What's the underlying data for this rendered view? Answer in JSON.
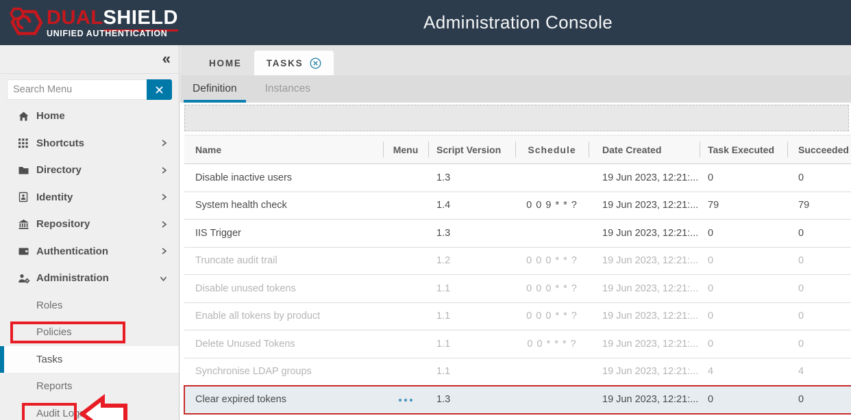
{
  "header": {
    "title": "Administration Console",
    "logo": {
      "brand_red": "DUAL",
      "brand_white": "SHIELD",
      "tagline": "UNIFIED AUTHENTICATION"
    }
  },
  "sidebar": {
    "collapse_icon": "«",
    "search": {
      "placeholder": "Search Menu",
      "value": ""
    },
    "items": [
      {
        "label": "Home",
        "icon": "home-icon",
        "chevron": "none",
        "level": 1
      },
      {
        "label": "Shortcuts",
        "icon": "shortcuts-grid-icon",
        "chevron": "right",
        "level": 1
      },
      {
        "label": "Directory",
        "icon": "folder-icon",
        "chevron": "right",
        "level": 1
      },
      {
        "label": "Identity",
        "icon": "id-card-icon",
        "chevron": "right",
        "level": 1
      },
      {
        "label": "Repository",
        "icon": "bank-icon",
        "chevron": "right",
        "level": 1
      },
      {
        "label": "Authentication",
        "icon": "wallet-icon",
        "chevron": "right",
        "level": 1
      },
      {
        "label": "Administration",
        "icon": "admin-user-gear-icon",
        "chevron": "down",
        "level": 1,
        "annotated": true
      },
      {
        "label": "Roles",
        "level": 2
      },
      {
        "label": "Policies",
        "level": 2
      },
      {
        "label": "Tasks",
        "level": 2,
        "selected": true,
        "annotated": true
      },
      {
        "label": "Reports",
        "level": 2
      },
      {
        "label": "Audit Logs",
        "level": 2
      }
    ],
    "annotations": {
      "boxed_items": [
        "Administration",
        "Tasks"
      ],
      "arrow_pointing_to": "Tasks"
    }
  },
  "main": {
    "tabs": [
      {
        "label": "HOME",
        "active": false,
        "closable": false
      },
      {
        "label": "TASKS",
        "active": true,
        "closable": true
      }
    ],
    "subtabs": [
      {
        "label": "Definition",
        "active": true
      },
      {
        "label": "Instances",
        "active": false
      }
    ],
    "table": {
      "columns": [
        "Name",
        "Menu",
        "Script Version",
        "Schedule",
        "Date Created",
        "Task Executed",
        "Succeeded"
      ],
      "rows": [
        {
          "name": "Disable inactive users",
          "script_version": "1.3",
          "schedule": "",
          "date_created": "19 Jun 2023, 12:21:...",
          "task_executed": "0",
          "succeeded": "0",
          "state": "active"
        },
        {
          "name": "System health check",
          "script_version": "1.4",
          "schedule": "0 0 9 * * ?",
          "date_created": "19 Jun 2023, 12:21:...",
          "task_executed": "79",
          "succeeded": "79",
          "state": "active"
        },
        {
          "name": "IIS Trigger",
          "script_version": "1.3",
          "schedule": "",
          "date_created": "19 Jun 2023, 12:21:...",
          "task_executed": "0",
          "succeeded": "0",
          "state": "active"
        },
        {
          "name": "Truncate audit trail",
          "script_version": "1.2",
          "schedule": "0 0 0 * * ?",
          "date_created": "19 Jun 2023, 12:21:...",
          "task_executed": "0",
          "succeeded": "0",
          "state": "disabled"
        },
        {
          "name": "Disable unused tokens",
          "script_version": "1.1",
          "schedule": "0 0 0 * * ?",
          "date_created": "19 Jun 2023, 12:21:...",
          "task_executed": "0",
          "succeeded": "0",
          "state": "disabled"
        },
        {
          "name": "Enable all tokens by product",
          "script_version": "1.1",
          "schedule": "0 0 0 * * ?",
          "date_created": "19 Jun 2023, 12:21:...",
          "task_executed": "0",
          "succeeded": "0",
          "state": "disabled"
        },
        {
          "name": "Delete Unused Tokens",
          "script_version": "1.1",
          "schedule": "0 0 * * * ?",
          "date_created": "19 Jun 2023, 12:21:...",
          "task_executed": "0",
          "succeeded": "0",
          "state": "disabled"
        },
        {
          "name": "Synchronise LDAP groups",
          "script_version": "1.1",
          "schedule": "",
          "date_created": "19 Jun 2023, 12:21:...",
          "task_executed": "4",
          "succeeded": "4",
          "state": "disabled"
        },
        {
          "name": "Clear expired tokens",
          "menu_icon": "ellipsis-menu-icon",
          "script_version": "1.3",
          "schedule": "",
          "date_created": "19 Jun 2023, 12:21:...",
          "task_executed": "0",
          "succeeded": "0",
          "state": "active",
          "selected": true
        }
      ]
    }
  },
  "colors": {
    "header_bg": "#2d3c4c",
    "brand_red": "#c8171d",
    "accent_blue": "#0079a8",
    "subtab_underline": "#0b7fad",
    "annotation_red": "#e81c24",
    "selected_row_bg": "#e6ecf0",
    "menu_dots_blue": "#4a96be"
  }
}
